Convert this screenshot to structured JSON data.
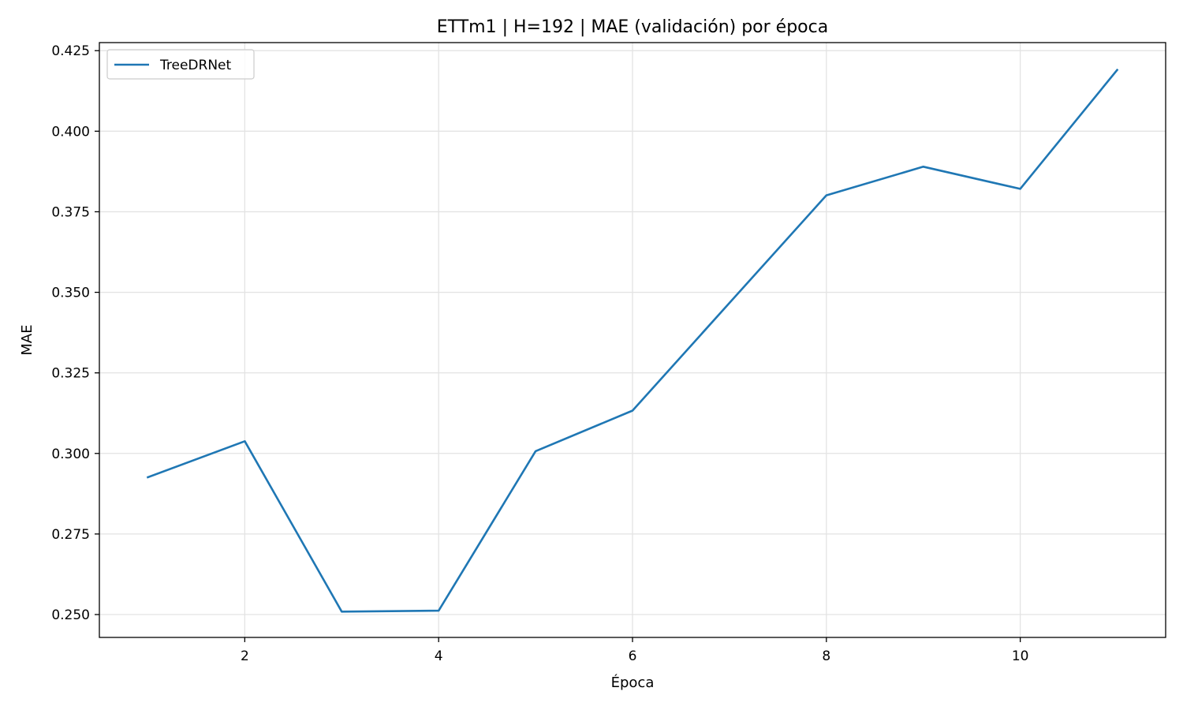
{
  "chart_data": {
    "type": "line",
    "title": "ETTm1 | H=192 | MAE (validación) por época",
    "xlabel": "Época",
    "ylabel": "MAE",
    "xlim": [
      0.5,
      11.5
    ],
    "ylim": [
      0.2429,
      0.4275
    ],
    "xticks": [
      2,
      4,
      6,
      8,
      10
    ],
    "xtick_labels": [
      "2",
      "4",
      "6",
      "8",
      "10"
    ],
    "yticks": [
      0.25,
      0.275,
      0.3,
      0.325,
      0.35,
      0.375,
      0.4,
      0.425
    ],
    "ytick_labels": [
      "0.250",
      "0.275",
      "0.300",
      "0.325",
      "0.350",
      "0.375",
      "0.400",
      "0.425"
    ],
    "grid": true,
    "legend_position": "top-left",
    "series": [
      {
        "name": "TreeDRNet",
        "color": "#1f77b4",
        "x": [
          1,
          2,
          3,
          4,
          5,
          6,
          7,
          8,
          9,
          10,
          11
        ],
        "y": [
          0.2926,
          0.3038,
          0.2509,
          0.2512,
          0.3007,
          0.3133,
          0.3467,
          0.3801,
          0.389,
          0.3821,
          0.419
        ]
      }
    ]
  }
}
